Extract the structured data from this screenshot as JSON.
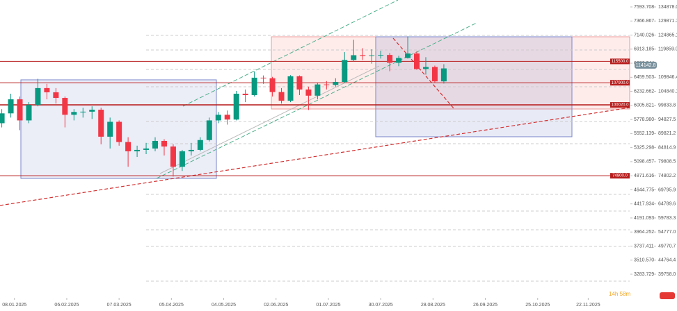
{
  "chart_data": {
    "type": "candlestick",
    "x": [
      "01.01.2025",
      "06.01.2025",
      "11.01.2025",
      "16.01.2025",
      "21.01.2025",
      "26.01.2025",
      "31.01.2025",
      "05.02.2025",
      "10.02.2025",
      "15.02.2025",
      "20.02.2025",
      "25.02.2025",
      "02.03.2025",
      "07.03.2025",
      "12.03.2025",
      "17.03.2025",
      "22.03.2025",
      "27.03.2025",
      "01.04.2025",
      "06.04.2025",
      "11.04.2025",
      "16.04.2025",
      "21.04.2025",
      "26.04.2025",
      "01.05.2025",
      "06.05.2025",
      "11.05.2025",
      "16.05.2025",
      "21.05.2025",
      "26.05.2025",
      "31.05.2025",
      "05.06.2025",
      "10.06.2025",
      "15.06.2025",
      "20.06.2025",
      "25.06.2025",
      "30.06.2025",
      "05.07.2025",
      "10.07.2025",
      "15.07.2025",
      "20.07.2025",
      "25.07.2025",
      "30.07.2025",
      "04.08.2025",
      "09.08.2025",
      "14.08.2025",
      "19.08.2025",
      "24.08.2025",
      "29.08.2025",
      "03.09.2025"
    ],
    "open": [
      93500,
      97000,
      102000,
      94500,
      100000,
      106000,
      104500,
      102500,
      96500,
      97500,
      97600,
      98300,
      88700,
      94000,
      86800,
      83500,
      84000,
      84500,
      87200,
      85200,
      78000,
      83500,
      84000,
      87500,
      94500,
      96500,
      94800,
      104000,
      103500,
      109700,
      109500,
      104600,
      101500,
      110200,
      105500,
      103300,
      107300,
      107100,
      108200,
      116000,
      117700,
      117400,
      117600,
      117800,
      115000,
      116700,
      118300,
      112800,
      113500,
      108400
    ],
    "high": [
      98500,
      104000,
      103000,
      101000,
      109300,
      107500,
      106000,
      103000,
      98500,
      99000,
      99500,
      99000,
      95500,
      94500,
      88500,
      85500,
      86500,
      88500,
      87800,
      86000,
      84000,
      86500,
      88500,
      95500,
      97500,
      98000,
      105000,
      105500,
      111900,
      110500,
      110000,
      106000,
      110600,
      110500,
      106500,
      108000,
      108500,
      109500,
      118800,
      123200,
      120200,
      119800,
      119300,
      118500,
      117500,
      124400,
      119000,
      117000,
      114000,
      114500
    ],
    "low": [
      92000,
      95500,
      91000,
      93500,
      99500,
      102000,
      100500,
      92000,
      94500,
      95500,
      95000,
      86000,
      84500,
      85500,
      78000,
      81500,
      82500,
      83500,
      82000,
      74500,
      76500,
      82000,
      83500,
      87000,
      93500,
      93000,
      94500,
      101000,
      103000,
      107500,
      103000,
      100500,
      101000,
      103500,
      98200,
      102000,
      105500,
      106500,
      107800,
      115500,
      116000,
      114700,
      116500,
      112000,
      113800,
      116500,
      112500,
      110800,
      108000,
      107600
    ],
    "close": [
      97000,
      102000,
      94500,
      100000,
      106000,
      104500,
      102500,
      96500,
      97500,
      97600,
      98300,
      88700,
      94000,
      86800,
      83500,
      84000,
      84500,
      87200,
      85200,
      78000,
      83500,
      84000,
      87500,
      94500,
      96500,
      94800,
      104000,
      103500,
      109700,
      109500,
      104600,
      101500,
      110200,
      105500,
      103300,
      107300,
      107100,
      108200,
      116000,
      117700,
      117400,
      117600,
      117800,
      115000,
      116700,
      118300,
      112800,
      113500,
      108400,
      113000
    ],
    "up_color": "#089981",
    "down_color": "#f23645",
    "xlim": [
      "31.12.2024",
      "15.12.2025"
    ],
    "xticks": [
      "08.01.2025",
      "06.02.2025",
      "07.03.2025",
      "05.04.2025",
      "04.05.2025",
      "02.06.2025",
      "01.07.2025",
      "30.07.2025",
      "28.08.2025",
      "26.09.2025",
      "25.10.2025",
      "22.11.2025"
    ],
    "ylim": [
      39758,
      134878
    ],
    "yticks": [
      {
        "value": 134878,
        "label": "134878.0"
      },
      129871.7,
      124865.1,
      {
        "value": 119859,
        "label": "119859.0"
      },
      109846.4,
      104840.1,
      99833.8,
      94827.5,
      89821.2,
      84814.9,
      79808.5,
      74802.2,
      69795.9,
      64789.6,
      59783.3,
      {
        "value": 54777,
        "label": "54777.0"
      },
      49770.7,
      44764.4,
      {
        "value": 39758,
        "label": "39758.0"
      }
    ],
    "y2lim": [
      3283.729,
      7593.708
    ],
    "y2ticks": [
      7593.708,
      7366.867,
      7140.026,
      6913.185,
      6686.344,
      6459.503,
      6232.662,
      6005.821,
      {
        "value": 5778.98,
        "label": "5778.980"
      },
      5552.139,
      5325.298,
      5098.457,
      4871.616,
      4644.775,
      4417.934,
      4191.093,
      3964.252,
      3737.411,
      {
        "value": 3510.57,
        "label": "3510.570"
      },
      3283.729
    ],
    "levels": [
      {
        "value": 115500,
        "label": "115500.0"
      },
      {
        "value": 107900,
        "label": "107900.0"
      },
      {
        "value": 100020,
        "label": "100020.0"
      },
      {
        "value": 74800,
        "label": "74800.0"
      }
    ],
    "level_color": "#b71c1c",
    "last_price": 114142.8,
    "countdown": "14h 58m"
  }
}
